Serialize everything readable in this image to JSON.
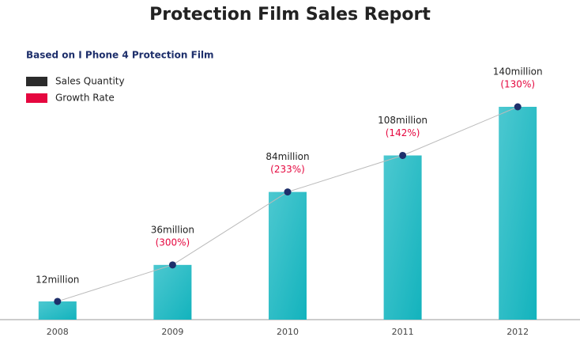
{
  "chart_data": {
    "type": "bar",
    "title": "Protection Film Sales Report",
    "subtitle": "Based on I Phone 4 Protection Film",
    "categories": [
      "2008",
      "2009",
      "2010",
      "2011",
      "2012"
    ],
    "series": [
      {
        "name": "Sales Quantity",
        "color": "#2b2b2b",
        "bar_color": "#13b3bd",
        "values": [
          12,
          36,
          84,
          108,
          140
        ],
        "value_labels": [
          "12million",
          "36million",
          "84million",
          "108million",
          "140million"
        ]
      },
      {
        "name": "Growth Rate",
        "color": "#e5073f",
        "values": [
          null,
          300,
          233,
          142,
          130
        ],
        "value_labels": [
          null,
          "(300%)",
          "(233%)",
          "(142%)",
          "(130%)"
        ]
      }
    ]
  }
}
